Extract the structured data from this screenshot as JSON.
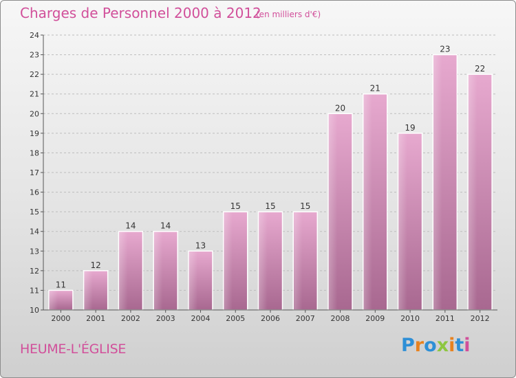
{
  "header": {
    "title": "Charges de Personnel 2000 à 2012",
    "subtitle": "(en milliers d'€)"
  },
  "footer": {
    "commune": "HEUME-L'ÉGLISE",
    "logo_text": "Proxiti",
    "logo_colors": [
      "#2e8fd6",
      "#e8821e",
      "#2e8fd6",
      "#8dc63f",
      "#e8821e",
      "#2e8fd6",
      "#d14f9a"
    ]
  },
  "colors": {
    "title": "#d14f9a",
    "bar_top": "#e7a9cf",
    "bar_bottom": "#a86890",
    "grid": "#bdbdbd",
    "axis": "#555555"
  },
  "chart_data": {
    "type": "bar",
    "title": "Charges de Personnel 2000 à 2012",
    "subtitle": "(en milliers d'€)",
    "categories": [
      "2000",
      "2001",
      "2002",
      "2003",
      "2004",
      "2005",
      "2006",
      "2007",
      "2008",
      "2009",
      "2010",
      "2011",
      "2012"
    ],
    "values": [
      11,
      12,
      14,
      14,
      13,
      15,
      15,
      15,
      20,
      21,
      19,
      23,
      22
    ],
    "ylim": [
      10,
      24
    ],
    "yticks": [
      10,
      11,
      12,
      13,
      14,
      15,
      16,
      17,
      18,
      19,
      20,
      21,
      22,
      23,
      24
    ],
    "grid": true,
    "data_labels": true
  }
}
